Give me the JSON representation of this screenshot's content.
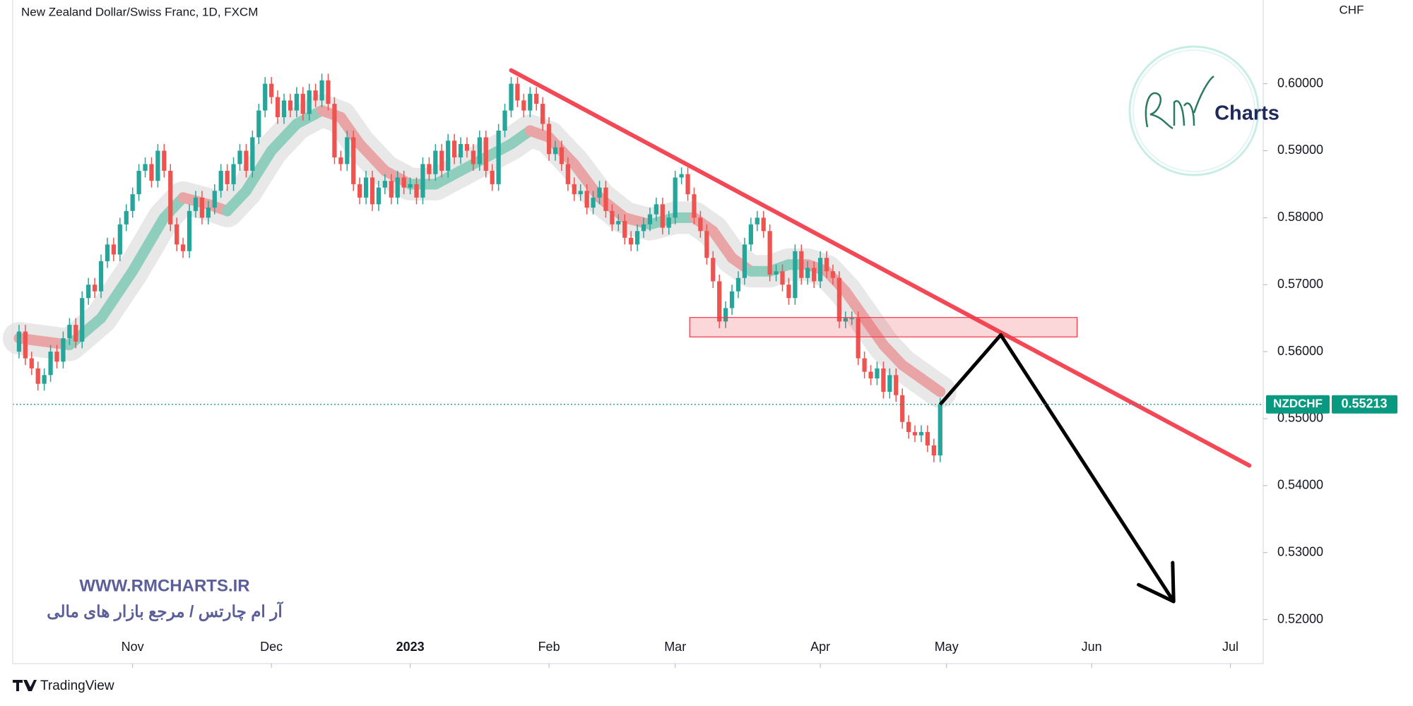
{
  "chart_data": {
    "type": "candlestick",
    "title": "New Zealand Dollar/Swiss Franc, 1D, FXCM",
    "currency": "CHF",
    "symbol": "NZDCHF",
    "last_price": 0.55213,
    "watermark_url": "WWW.RMCHARTS.IR",
    "watermark_text": "آر ام چارتس / مرجع بازار های مالی",
    "logo_text": "Charts",
    "brand": "TradingView",
    "up_color": "#26a69a",
    "down_color": "#ef5350",
    "xlim": [
      -19,
      179.2
    ],
    "ylim": [
      0.51342,
      0.6125
    ],
    "xticks": [
      {
        "value": 0,
        "label": "Nov"
      },
      {
        "value": 22,
        "label": "Dec"
      },
      {
        "value": 44,
        "label": "2023"
      },
      {
        "value": 66,
        "label": "Feb"
      },
      {
        "value": 86,
        "label": "Mar"
      },
      {
        "value": 109,
        "label": "Apr"
      },
      {
        "value": 129,
        "label": "May"
      },
      {
        "value": 152,
        "label": "Jun"
      },
      {
        "value": 174,
        "label": "Jul"
      }
    ],
    "yticks": [
      {
        "value": 0.52,
        "label": "0.52000"
      },
      {
        "value": 0.53,
        "label": "0.53000"
      },
      {
        "value": 0.54,
        "label": "0.54000"
      },
      {
        "value": 0.55,
        "label": "0.55000"
      },
      {
        "value": 0.56,
        "label": "0.56000"
      },
      {
        "value": 0.57,
        "label": "0.57000"
      },
      {
        "value": 0.58,
        "label": "0.58000"
      },
      {
        "value": 0.59,
        "label": "0.59000"
      },
      {
        "value": 0.6,
        "label": "0.60000"
      }
    ],
    "x": [
      -18,
      -17,
      -16,
      -15,
      -14,
      -13,
      -12,
      -11,
      -10,
      -9,
      -8,
      -7,
      -6,
      -5,
      -4,
      -3,
      -2,
      -1,
      0,
      1,
      2,
      3,
      4,
      5,
      6,
      7,
      8,
      9,
      10,
      11,
      12,
      13,
      14,
      15,
      16,
      17,
      18,
      19,
      20,
      21,
      22,
      23,
      24,
      25,
      26,
      27,
      28,
      29,
      30,
      31,
      32,
      33,
      34,
      35,
      36,
      37,
      38,
      39,
      40,
      41,
      42,
      43,
      44,
      45,
      46,
      47,
      48,
      49,
      50,
      51,
      52,
      53,
      54,
      55,
      56,
      57,
      58,
      59,
      60,
      61,
      62,
      63,
      64,
      65,
      66,
      67,
      68,
      69,
      70,
      71,
      72,
      73,
      74,
      75,
      76,
      77,
      78,
      79,
      80,
      81,
      82,
      83,
      84,
      85,
      86,
      87,
      88,
      89,
      90,
      91,
      92,
      93,
      94,
      95,
      96,
      97,
      98,
      99,
      100,
      101,
      102,
      103,
      104,
      105,
      106,
      107,
      108,
      109,
      110,
      111,
      112,
      113,
      114,
      115,
      116,
      117,
      118,
      119,
      120,
      121,
      122,
      123,
      124,
      125,
      126,
      127,
      128
    ],
    "candles": [
      [
        0.56,
        0.564,
        0.559,
        0.563
      ],
      [
        0.563,
        0.564,
        0.558,
        0.559
      ],
      [
        0.559,
        0.56,
        0.5565,
        0.5575
      ],
      [
        0.5575,
        0.5585,
        0.5542,
        0.5552
      ],
      [
        0.5552,
        0.5575,
        0.5542,
        0.5565
      ],
      [
        0.5565,
        0.561,
        0.5555,
        0.56
      ],
      [
        0.56,
        0.561,
        0.5575,
        0.5585
      ],
      [
        0.5585,
        0.563,
        0.5575,
        0.562
      ],
      [
        0.562,
        0.565,
        0.561,
        0.564
      ],
      [
        0.564,
        0.565,
        0.5605,
        0.5615
      ],
      [
        0.5615,
        0.569,
        0.5605,
        0.568
      ],
      [
        0.568,
        0.571,
        0.567,
        0.57
      ],
      [
        0.57,
        0.571,
        0.568,
        0.569
      ],
      [
        0.569,
        0.5745,
        0.568,
        0.5735
      ],
      [
        0.5735,
        0.577,
        0.5725,
        0.576
      ],
      [
        0.576,
        0.577,
        0.5735,
        0.5745
      ],
      [
        0.5745,
        0.58,
        0.5735,
        0.579
      ],
      [
        0.579,
        0.582,
        0.578,
        0.581
      ],
      [
        0.581,
        0.5845,
        0.58,
        0.5835
      ],
      [
        0.5835,
        0.588,
        0.5825,
        0.587
      ],
      [
        0.587,
        0.589,
        0.586,
        0.588
      ],
      [
        0.588,
        0.589,
        0.5845,
        0.5855
      ],
      [
        0.5855,
        0.591,
        0.5845,
        0.59
      ],
      [
        0.59,
        0.591,
        0.586,
        0.587
      ],
      [
        0.587,
        0.588,
        0.578,
        0.579
      ],
      [
        0.579,
        0.58,
        0.575,
        0.576
      ],
      [
        0.576,
        0.577,
        0.574,
        0.575
      ],
      [
        0.575,
        0.582,
        0.574,
        0.581
      ],
      [
        0.581,
        0.584,
        0.58,
        0.583
      ],
      [
        0.583,
        0.584,
        0.579,
        0.58
      ],
      [
        0.58,
        0.5825,
        0.579,
        0.5815
      ],
      [
        0.5815,
        0.585,
        0.5805,
        0.584
      ],
      [
        0.584,
        0.588,
        0.583,
        0.587
      ],
      [
        0.587,
        0.588,
        0.584,
        0.585
      ],
      [
        0.585,
        0.589,
        0.584,
        0.588
      ],
      [
        0.588,
        0.591,
        0.587,
        0.59
      ],
      [
        0.59,
        0.591,
        0.586,
        0.587
      ],
      [
        0.587,
        0.593,
        0.586,
        0.592
      ],
      [
        0.592,
        0.597,
        0.591,
        0.596
      ],
      [
        0.596,
        0.601,
        0.595,
        0.6
      ],
      [
        0.6,
        0.601,
        0.597,
        0.598
      ],
      [
        0.598,
        0.599,
        0.594,
        0.595
      ],
      [
        0.595,
        0.5985,
        0.594,
        0.5975
      ],
      [
        0.5975,
        0.5985,
        0.595,
        0.596
      ],
      [
        0.596,
        0.5995,
        0.595,
        0.5985
      ],
      [
        0.5985,
        0.5995,
        0.5945,
        0.5955
      ],
      [
        0.5955,
        0.6,
        0.5945,
        0.599
      ],
      [
        0.599,
        0.6,
        0.5965,
        0.5975
      ],
      [
        0.5975,
        0.6015,
        0.5965,
        0.6005
      ],
      [
        0.6005,
        0.6015,
        0.596,
        0.597
      ],
      [
        0.597,
        0.598,
        0.588,
        0.589
      ],
      [
        0.589,
        0.59,
        0.587,
        0.588
      ],
      [
        0.588,
        0.593,
        0.587,
        0.592
      ],
      [
        0.592,
        0.593,
        0.584,
        0.585
      ],
      [
        0.585,
        0.586,
        0.582,
        0.583
      ],
      [
        0.583,
        0.587,
        0.582,
        0.586
      ],
      [
        0.586,
        0.587,
        0.581,
        0.582
      ],
      [
        0.582,
        0.5855,
        0.581,
        0.5845
      ],
      [
        0.5845,
        0.5865,
        0.5835,
        0.5855
      ],
      [
        0.5855,
        0.5865,
        0.582,
        0.583
      ],
      [
        0.583,
        0.587,
        0.582,
        0.586
      ],
      [
        0.586,
        0.587,
        0.5835,
        0.5845
      ],
      [
        0.5845,
        0.586,
        0.5835,
        0.585
      ],
      [
        0.585,
        0.586,
        0.582,
        0.583
      ],
      [
        0.583,
        0.589,
        0.582,
        0.588
      ],
      [
        0.588,
        0.589,
        0.5855,
        0.5865
      ],
      [
        0.5865,
        0.591,
        0.5855,
        0.59
      ],
      [
        0.59,
        0.591,
        0.586,
        0.587
      ],
      [
        0.587,
        0.5925,
        0.586,
        0.5915
      ],
      [
        0.5915,
        0.5925,
        0.588,
        0.589
      ],
      [
        0.589,
        0.592,
        0.588,
        0.591
      ],
      [
        0.591,
        0.592,
        0.589,
        0.59
      ],
      [
        0.59,
        0.591,
        0.587,
        0.588
      ],
      [
        0.588,
        0.593,
        0.587,
        0.592
      ],
      [
        0.592,
        0.593,
        0.586,
        0.587
      ],
      [
        0.587,
        0.588,
        0.584,
        0.585
      ],
      [
        0.585,
        0.594,
        0.584,
        0.593
      ],
      [
        0.593,
        0.597,
        0.592,
        0.596
      ],
      [
        0.596,
        0.601,
        0.595,
        0.6
      ],
      [
        0.6,
        0.601,
        0.5965,
        0.5975
      ],
      [
        0.5975,
        0.5985,
        0.595,
        0.596
      ],
      [
        0.596,
        0.5995,
        0.595,
        0.5985
      ],
      [
        0.5985,
        0.5995,
        0.596,
        0.597
      ],
      [
        0.597,
        0.598,
        0.593,
        0.594
      ],
      [
        0.594,
        0.595,
        0.5885,
        0.5895
      ],
      [
        0.5895,
        0.5915,
        0.5885,
        0.5905
      ],
      [
        0.5905,
        0.5915,
        0.587,
        0.588
      ],
      [
        0.588,
        0.589,
        0.584,
        0.585
      ],
      [
        0.585,
        0.586,
        0.5825,
        0.5835
      ],
      [
        0.5835,
        0.585,
        0.5825,
        0.584
      ],
      [
        0.584,
        0.585,
        0.5805,
        0.5815
      ],
      [
        0.5815,
        0.584,
        0.5805,
        0.583
      ],
      [
        0.583,
        0.5855,
        0.582,
        0.5845
      ],
      [
        0.5845,
        0.5855,
        0.58,
        0.581
      ],
      [
        0.581,
        0.582,
        0.578,
        0.579
      ],
      [
        0.579,
        0.5805,
        0.578,
        0.5795
      ],
      [
        0.5795,
        0.5805,
        0.576,
        0.577
      ],
      [
        0.577,
        0.578,
        0.575,
        0.576
      ],
      [
        0.576,
        0.579,
        0.575,
        0.578
      ],
      [
        0.578,
        0.58,
        0.577,
        0.579
      ],
      [
        0.579,
        0.5815,
        0.578,
        0.5805
      ],
      [
        0.5805,
        0.583,
        0.5795,
        0.582
      ],
      [
        0.582,
        0.583,
        0.5775,
        0.5785
      ],
      [
        0.5785,
        0.581,
        0.5775,
        0.58
      ],
      [
        0.58,
        0.587,
        0.579,
        0.586
      ],
      [
        0.586,
        0.5875,
        0.585,
        0.5865
      ],
      [
        0.5865,
        0.5875,
        0.5825,
        0.5835
      ],
      [
        0.5835,
        0.5845,
        0.579,
        0.58
      ],
      [
        0.58,
        0.581,
        0.577,
        0.578
      ],
      [
        0.578,
        0.579,
        0.573,
        0.574
      ],
      [
        0.574,
        0.575,
        0.5695,
        0.5705
      ],
      [
        0.5705,
        0.5715,
        0.5635,
        0.5645
      ],
      [
        0.5645,
        0.5675,
        0.5635,
        0.5665
      ],
      [
        0.5665,
        0.57,
        0.5655,
        0.569
      ],
      [
        0.569,
        0.572,
        0.568,
        0.571
      ],
      [
        0.571,
        0.577,
        0.57,
        0.576
      ],
      [
        0.576,
        0.58,
        0.575,
        0.579
      ],
      [
        0.579,
        0.581,
        0.578,
        0.58
      ],
      [
        0.58,
        0.581,
        0.577,
        0.578
      ],
      [
        0.578,
        0.579,
        0.5705,
        0.5715
      ],
      [
        0.5715,
        0.573,
        0.5705,
        0.572
      ],
      [
        0.572,
        0.573,
        0.569,
        0.57
      ],
      [
        0.57,
        0.571,
        0.567,
        0.568
      ],
      [
        0.568,
        0.576,
        0.567,
        0.575
      ],
      [
        0.575,
        0.576,
        0.57,
        0.571
      ],
      [
        0.571,
        0.5735,
        0.57,
        0.5725
      ],
      [
        0.5725,
        0.5735,
        0.5695,
        0.5705
      ],
      [
        0.5705,
        0.575,
        0.5695,
        0.574
      ],
      [
        0.574,
        0.575,
        0.571,
        0.572
      ],
      [
        0.572,
        0.573,
        0.57,
        0.571
      ],
      [
        0.571,
        0.572,
        0.5635,
        0.5645
      ],
      [
        0.5645,
        0.566,
        0.5635,
        0.565
      ],
      [
        0.565,
        0.566,
        0.564,
        0.565
      ],
      [
        0.565,
        0.566,
        0.558,
        0.559
      ],
      [
        0.559,
        0.56,
        0.556,
        0.557
      ],
      [
        0.557,
        0.558,
        0.555,
        0.556
      ],
      [
        0.556,
        0.5585,
        0.555,
        0.5575
      ],
      [
        0.5575,
        0.5585,
        0.553,
        0.554
      ],
      [
        0.554,
        0.5575,
        0.553,
        0.5565
      ],
      [
        0.5565,
        0.5575,
        0.5525,
        0.5535
      ],
      [
        0.5535,
        0.5545,
        0.5485,
        0.5495
      ],
      [
        0.5495,
        0.5505,
        0.547,
        0.548
      ],
      [
        0.548,
        0.549,
        0.5465,
        0.5475
      ],
      [
        0.5475,
        0.549,
        0.5465,
        0.548
      ],
      [
        0.548,
        0.549,
        0.545,
        0.546
      ],
      [
        0.546,
        0.547,
        0.5435,
        0.5445
      ],
      [
        0.5445,
        0.5531,
        0.5435,
        0.5521
      ]
    ],
    "ma": {
      "up_color": "#8fcdbd",
      "down_color": "#e9a5a5",
      "x": [
        -18,
        -10,
        -5,
        0,
        5,
        8,
        12,
        15,
        18,
        22,
        26,
        30,
        33,
        36,
        40,
        44,
        48,
        52,
        56,
        60,
        63,
        66,
        70,
        74,
        78,
        82,
        86,
        89,
        92,
        95,
        98,
        101,
        104,
        107,
        110,
        113,
        116,
        119,
        122,
        125,
        128
      ],
      "values": [
        0.562,
        0.561,
        0.565,
        0.572,
        0.58,
        0.583,
        0.582,
        0.581,
        0.584,
        0.59,
        0.594,
        0.596,
        0.595,
        0.591,
        0.587,
        0.585,
        0.585,
        0.587,
        0.589,
        0.591,
        0.593,
        0.592,
        0.588,
        0.583,
        0.58,
        0.579,
        0.58,
        0.58,
        0.578,
        0.574,
        0.572,
        0.572,
        0.573,
        0.573,
        0.572,
        0.569,
        0.565,
        0.561,
        0.558,
        0.556,
        0.554
      ]
    },
    "trendline": {
      "color": "#f23645",
      "x": [
        60,
        177
      ],
      "y": [
        0.602,
        0.543
      ]
    },
    "zone": {
      "x": [
        88.3,
        149.7
      ],
      "y": [
        0.5622,
        0.5651
      ]
    },
    "projection": {
      "color": "#000000",
      "x": [
        128,
        137.6,
        165
      ],
      "y": [
        0.5521,
        0.5625,
        0.5227
      ]
    }
  }
}
